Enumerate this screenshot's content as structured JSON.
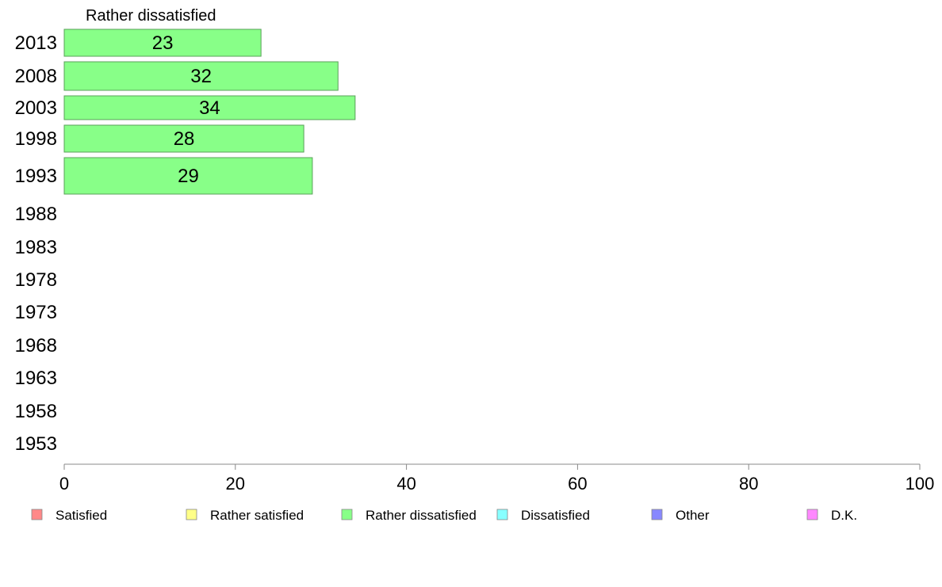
{
  "chart_data": {
    "type": "bar",
    "title": "Rather dissatisfied",
    "categories": [
      "2013",
      "2008",
      "2003",
      "1998",
      "1993",
      "1988",
      "1983",
      "1978",
      "1973",
      "1968",
      "1963",
      "1958",
      "1953"
    ],
    "series": [
      {
        "name": "Rather dissatisfied",
        "color": "#88ff88",
        "values": [
          23,
          32,
          34,
          28,
          29,
          null,
          null,
          null,
          null,
          null,
          null,
          null,
          null
        ]
      }
    ],
    "xlim": [
      0,
      100
    ],
    "xticks": [
      0,
      20,
      40,
      60,
      80,
      100
    ],
    "grid": false,
    "legend_position": "bottom",
    "legend": [
      {
        "label": "Satisfied",
        "color": "#ff8888"
      },
      {
        "label": "Rather satisfied",
        "color": "#ffff88"
      },
      {
        "label": "Rather dissatisfied",
        "color": "#88ff88"
      },
      {
        "label": "Dissatisfied",
        "color": "#88ffff"
      },
      {
        "label": "Other",
        "color": "#8888ff"
      },
      {
        "label": "D.K.",
        "color": "#ff88ff"
      }
    ]
  }
}
